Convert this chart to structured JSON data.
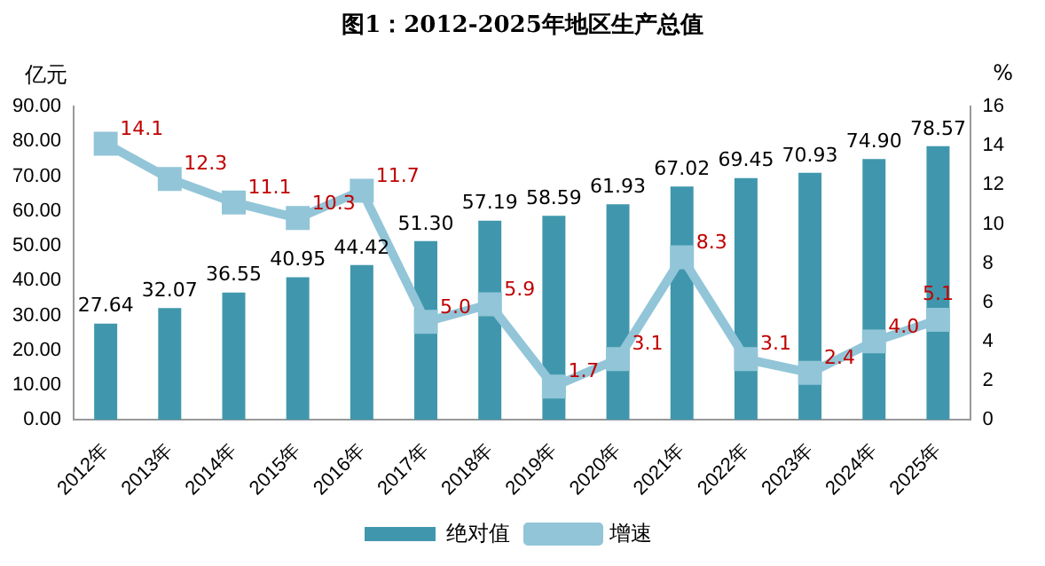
{
  "chart_data": {
    "type": "bar",
    "title": "图1：2012-2025年地区生产总值",
    "ylabel": "亿元",
    "y2label": "%",
    "categories": [
      "2012年",
      "2013年",
      "2014年",
      "2015年",
      "2016年",
      "2017年",
      "2018年",
      "2019年",
      "2020年",
      "2021年",
      "2022年",
      "2023年",
      "2024年",
      "2025年"
    ],
    "series": [
      {
        "name": "绝对值",
        "color": "#4097ad",
        "values": [
          27.64,
          32.07,
          36.55,
          40.95,
          44.42,
          51.3,
          57.19,
          58.59,
          61.93,
          67.02,
          69.45,
          70.93,
          74.9,
          78.57
        ],
        "value_labels": [
          "27.64",
          "32.07",
          "36.55",
          "40.95",
          "44.42",
          "51.30",
          "57.19",
          "58.59",
          "61.93",
          "67.02",
          "69.45",
          "70.93",
          "74.90",
          "78.57"
        ]
      },
      {
        "name": "增速",
        "type": "line",
        "axis": "y2",
        "color": "#92c5d8",
        "values": [
          14.1,
          12.3,
          11.1,
          10.3,
          11.7,
          5.0,
          5.9,
          1.7,
          3.1,
          8.3,
          3.1,
          2.4,
          4.0,
          5.1
        ],
        "value_labels": [
          "14.1",
          "12.3",
          "11.1",
          "10.3",
          "11.7",
          "5.0",
          "5.9",
          "1.7",
          "3.1",
          "8.3",
          "3.1",
          "2.4",
          "4.0",
          "5.1"
        ]
      }
    ],
    "ylim": [
      0,
      90
    ],
    "yticks": [
      {
        "value": 0,
        "label": "0.00"
      },
      {
        "value": 10,
        "label": "10.00"
      },
      {
        "value": 20,
        "label": "20.00"
      },
      {
        "value": 30,
        "label": "30.00"
      },
      {
        "value": 40,
        "label": "40.00"
      },
      {
        "value": 50,
        "label": "50.00"
      },
      {
        "value": 60,
        "label": "60.00"
      },
      {
        "value": 70,
        "label": "70.00"
      },
      {
        "value": 80,
        "label": "80.00"
      },
      {
        "value": 90,
        "label": "90.00"
      }
    ],
    "y2lim": [
      0,
      16
    ],
    "y2ticks": [
      0,
      2,
      4,
      6,
      8,
      10,
      12,
      14,
      16
    ],
    "data_labels": true,
    "grid": false,
    "legend": "bottom",
    "marker": "square",
    "line_style": "solid"
  }
}
